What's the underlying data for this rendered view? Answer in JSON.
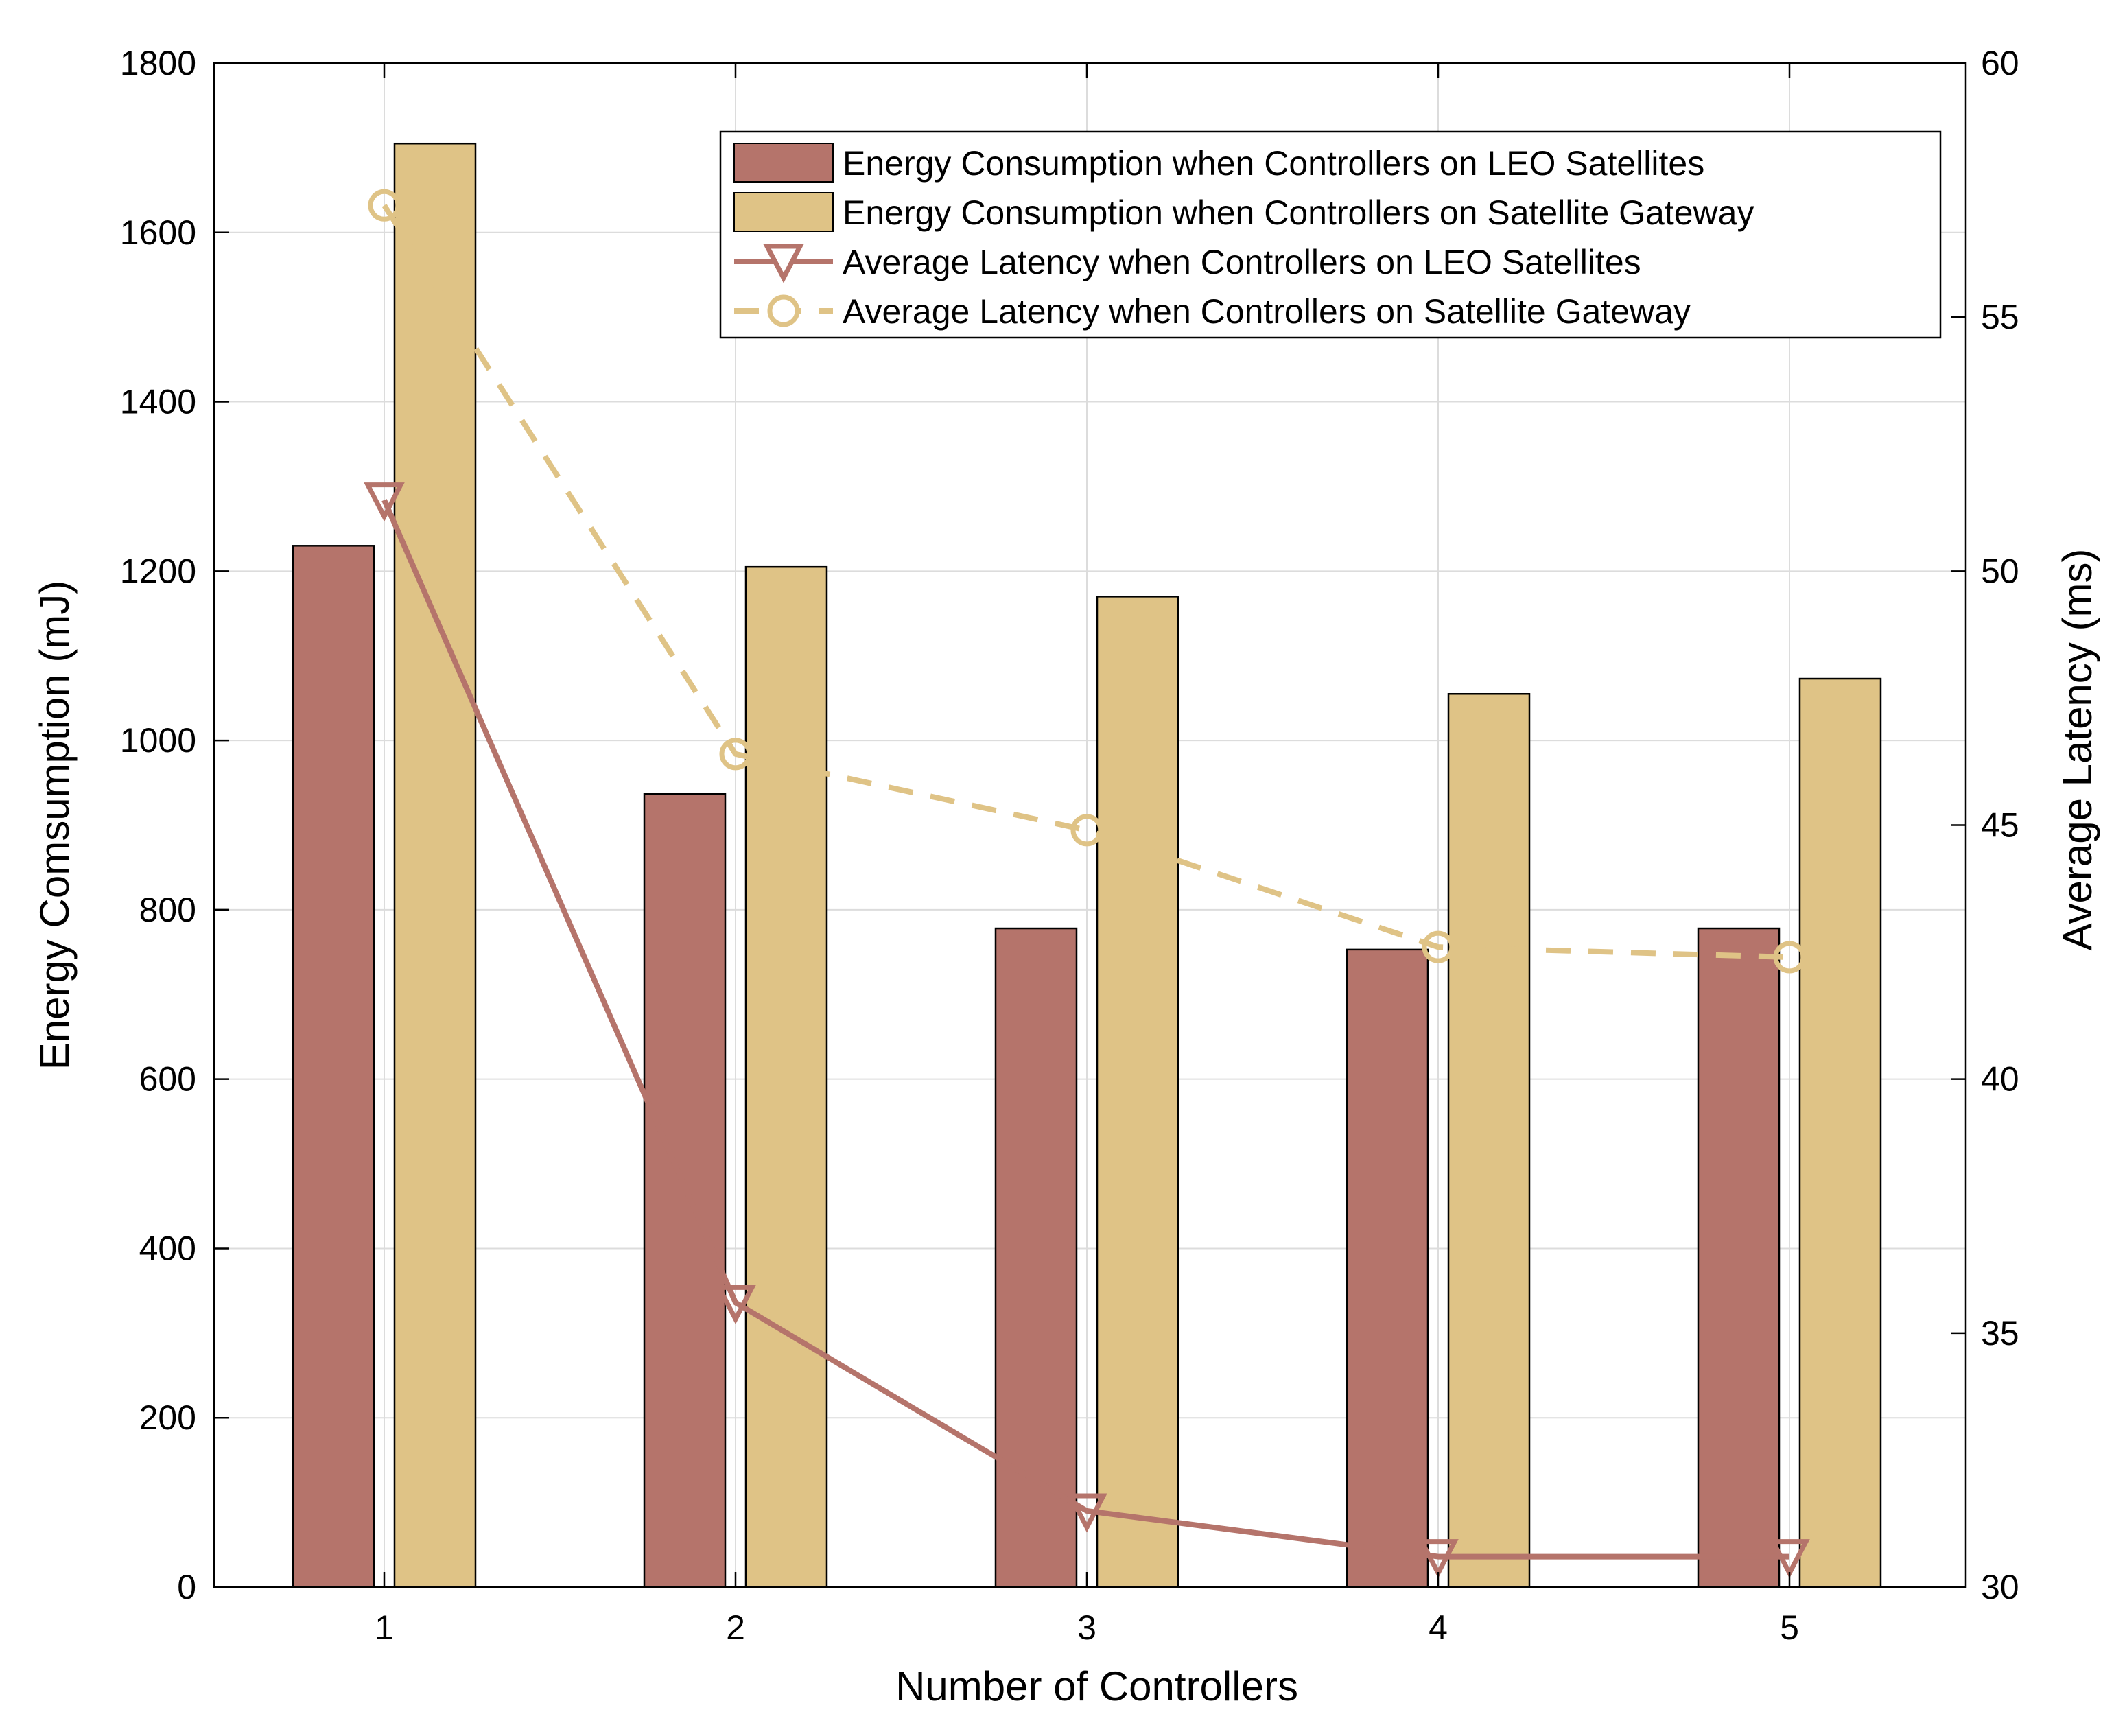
{
  "chart_data": {
    "type": "bar",
    "title": "",
    "xlabel": "Number of Controllers",
    "ylabel": "Energy Comsumption (mJ)",
    "y2label": "Average Latency (ms)",
    "categories": [
      "1",
      "2",
      "3",
      "4",
      "5"
    ],
    "ylim": [
      0,
      1800
    ],
    "yticks": [
      0,
      200,
      400,
      600,
      800,
      1000,
      1200,
      1400,
      1600,
      1800
    ],
    "y2lim": [
      30,
      60
    ],
    "y2ticks": [
      30,
      35,
      40,
      45,
      50,
      55,
      60
    ],
    "grid": true,
    "legend_position": "top-right",
    "bar_series": [
      {
        "name": "Energy Consumption when Controllers on LEO Satellites",
        "color": "#B5746B",
        "values": [
          1230,
          937,
          778,
          753,
          778
        ]
      },
      {
        "name": "Energy Consumption when Controllers on Satellite Gateway",
        "color": "#DFC386",
        "values": [
          1705,
          1205,
          1170,
          1055,
          1073
        ]
      }
    ],
    "line_series": [
      {
        "name": "Average Latency when Controllers on LEO Satellites",
        "color": "#B5746B",
        "marker": "triangle-down",
        "dash": "solid",
        "values": [
          51.4,
          35.6,
          31.5,
          30.6,
          30.6
        ]
      },
      {
        "name": "Average Latency when Controllers on Satellite Gateway",
        "color": "#DFC386",
        "marker": "circle",
        "dash": "dashed",
        "values": [
          57.2,
          46.4,
          44.9,
          42.6,
          42.4
        ]
      }
    ]
  }
}
